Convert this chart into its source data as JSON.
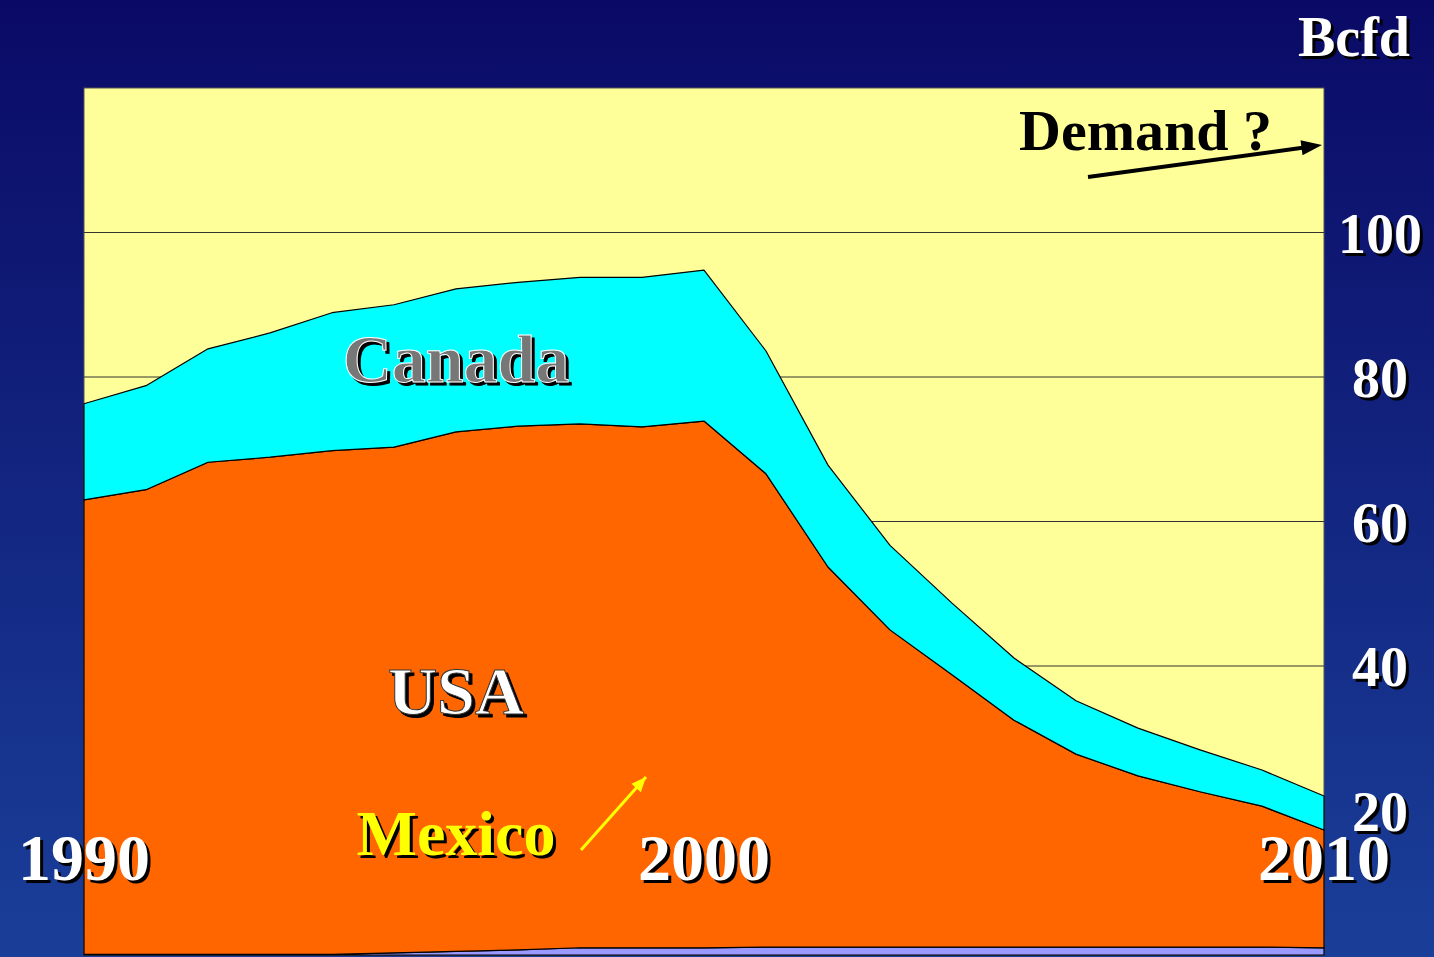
{
  "chart_data": {
    "type": "area",
    "stacked": true,
    "ylabel": "Bcfd",
    "x": [
      1990,
      1991,
      1992,
      1993,
      1994,
      1995,
      1996,
      1997,
      1998,
      1999,
      2000,
      2001,
      2002,
      2003,
      2004,
      2005,
      2006,
      2007,
      2008,
      2009,
      2010
    ],
    "xlim": [
      1990,
      2010
    ],
    "xticks": [
      1990,
      2000,
      2010
    ],
    "ylim": [
      0,
      120
    ],
    "yticks": [
      20,
      40,
      60,
      80,
      100
    ],
    "grid": "y",
    "series": [
      {
        "name": "Mexico",
        "color": "#9999ff",
        "values": [
          0.1,
          0.1,
          0.1,
          0.1,
          0.1,
          0.3,
          0.5,
          0.7,
          1,
          1,
          1,
          1.1,
          1.1,
          1.1,
          1.1,
          1.1,
          1.1,
          1.1,
          1.1,
          1.1,
          1
        ]
      },
      {
        "name": "USA",
        "color": "#ff6600",
        "values": [
          62.9,
          64.3,
          68.1,
          68.8,
          69.7,
          70.0,
          71.9,
          72.5,
          72.5,
          72.1,
          72.9,
          65.5,
          52.6,
          43.9,
          37.7,
          31.4,
          26.7,
          23.7,
          21.5,
          19.5,
          16.3
        ]
      },
      {
        "name": "Canada",
        "color": "#00ffff",
        "values": [
          13.3,
          14.4,
          15.7,
          17.2,
          19.1,
          19.7,
          19.8,
          19.9,
          20.3,
          20.7,
          20.9,
          17.0,
          14.1,
          11.7,
          9.9,
          8.6,
          7.4,
          6.6,
          5.8,
          5.0,
          4.7
        ]
      }
    ],
    "annotations": [
      "Demand ?"
    ]
  }
}
